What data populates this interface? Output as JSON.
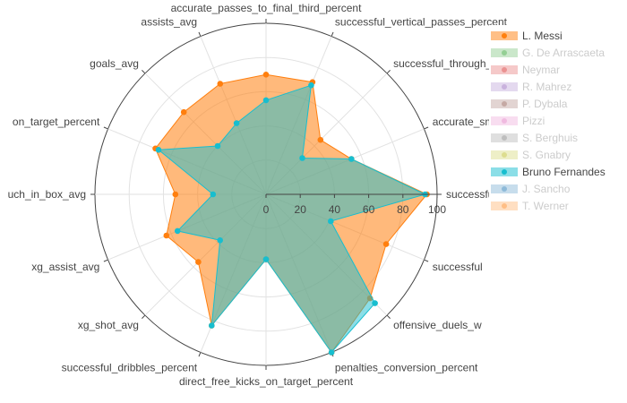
{
  "chart_data": {
    "type": "radar",
    "title": "",
    "radial_range": [
      0,
      100
    ],
    "radial_ticks": [
      "0",
      "20",
      "40",
      "60",
      "80",
      "100"
    ],
    "grid": true,
    "legend_position": "top-right",
    "axes": [
      "successful_crosses_percent",
      "accurate_smart_passes_percent",
      "successful_through_passes_percent",
      "successful_vertical_passes_percent",
      "accurate_passes_to_final_third_percent",
      "assists_avg",
      "goals_avg",
      "shots_on_target_percent",
      "touch_in_box_avg",
      "xg_assist_avg",
      "xg_shot_avg",
      "successful_dribbles_percent",
      "direct_free_kicks_on_target_percent",
      "penalties_conversion_percent",
      "offensive_duels_won_percent",
      "successful_attacking_actions_avg"
    ],
    "axis_labels_shown": [
      "successful_crosses_perc…ss",
      "accurate_smart_passes_percent",
      "successful_through_passes_percent",
      "successful_vertical_passes_percent",
      "accurate_passes_to_final_third_percent",
      "assists_avg",
      "goals_avg",
      "on_target_percent",
      "uch_in_box_avg",
      "xg_assist_avg",
      "xg_shot_avg",
      "successful_dribbles_percent",
      "direct_free_kicks_on_target_percent",
      "penalties_conversion_percent",
      "offensive_duels_w",
      "successful"
    ],
    "series": [
      {
        "name": "L. Messi",
        "color": "#ff7f0e",
        "fill": "rgba(255,127,14,0.55)",
        "visible": true,
        "values": [
          94,
          54,
          45,
          71,
          70,
          70,
          68,
          70,
          53,
          63,
          56,
          83,
          38,
          100,
          86,
          76
        ]
      },
      {
        "name": "Bruno Fernandes",
        "color": "#17becf",
        "fill": "rgba(23,190,207,0.5)",
        "visible": true,
        "values": [
          93,
          54,
          30,
          69,
          55,
          45,
          40,
          68,
          31,
          56,
          38,
          83,
          38,
          100,
          90,
          41
        ]
      }
    ],
    "legend": [
      {
        "name": "L. Messi",
        "color": "#ff7f0e",
        "visible": true
      },
      {
        "name": "G. De Arrascaeta",
        "color": "#2ca02c",
        "visible": false
      },
      {
        "name": "Neymar",
        "color": "#d62728",
        "visible": false
      },
      {
        "name": "R. Mahrez",
        "color": "#9467bd",
        "visible": false
      },
      {
        "name": "P. Dybala",
        "color": "#8c564b",
        "visible": false
      },
      {
        "name": "Pizzi",
        "color": "#e377c2",
        "visible": false
      },
      {
        "name": "S. Berghuis",
        "color": "#7f7f7f",
        "visible": false
      },
      {
        "name": "S. Gnabry",
        "color": "#bcbd22",
        "visible": false
      },
      {
        "name": "Bruno Fernandes",
        "color": "#17becf",
        "visible": true
      },
      {
        "name": "J. Sancho",
        "color": "#1f77b4",
        "visible": false
      },
      {
        "name": "T. Werner",
        "color": "#ff7f0e",
        "visible": false
      }
    ]
  }
}
